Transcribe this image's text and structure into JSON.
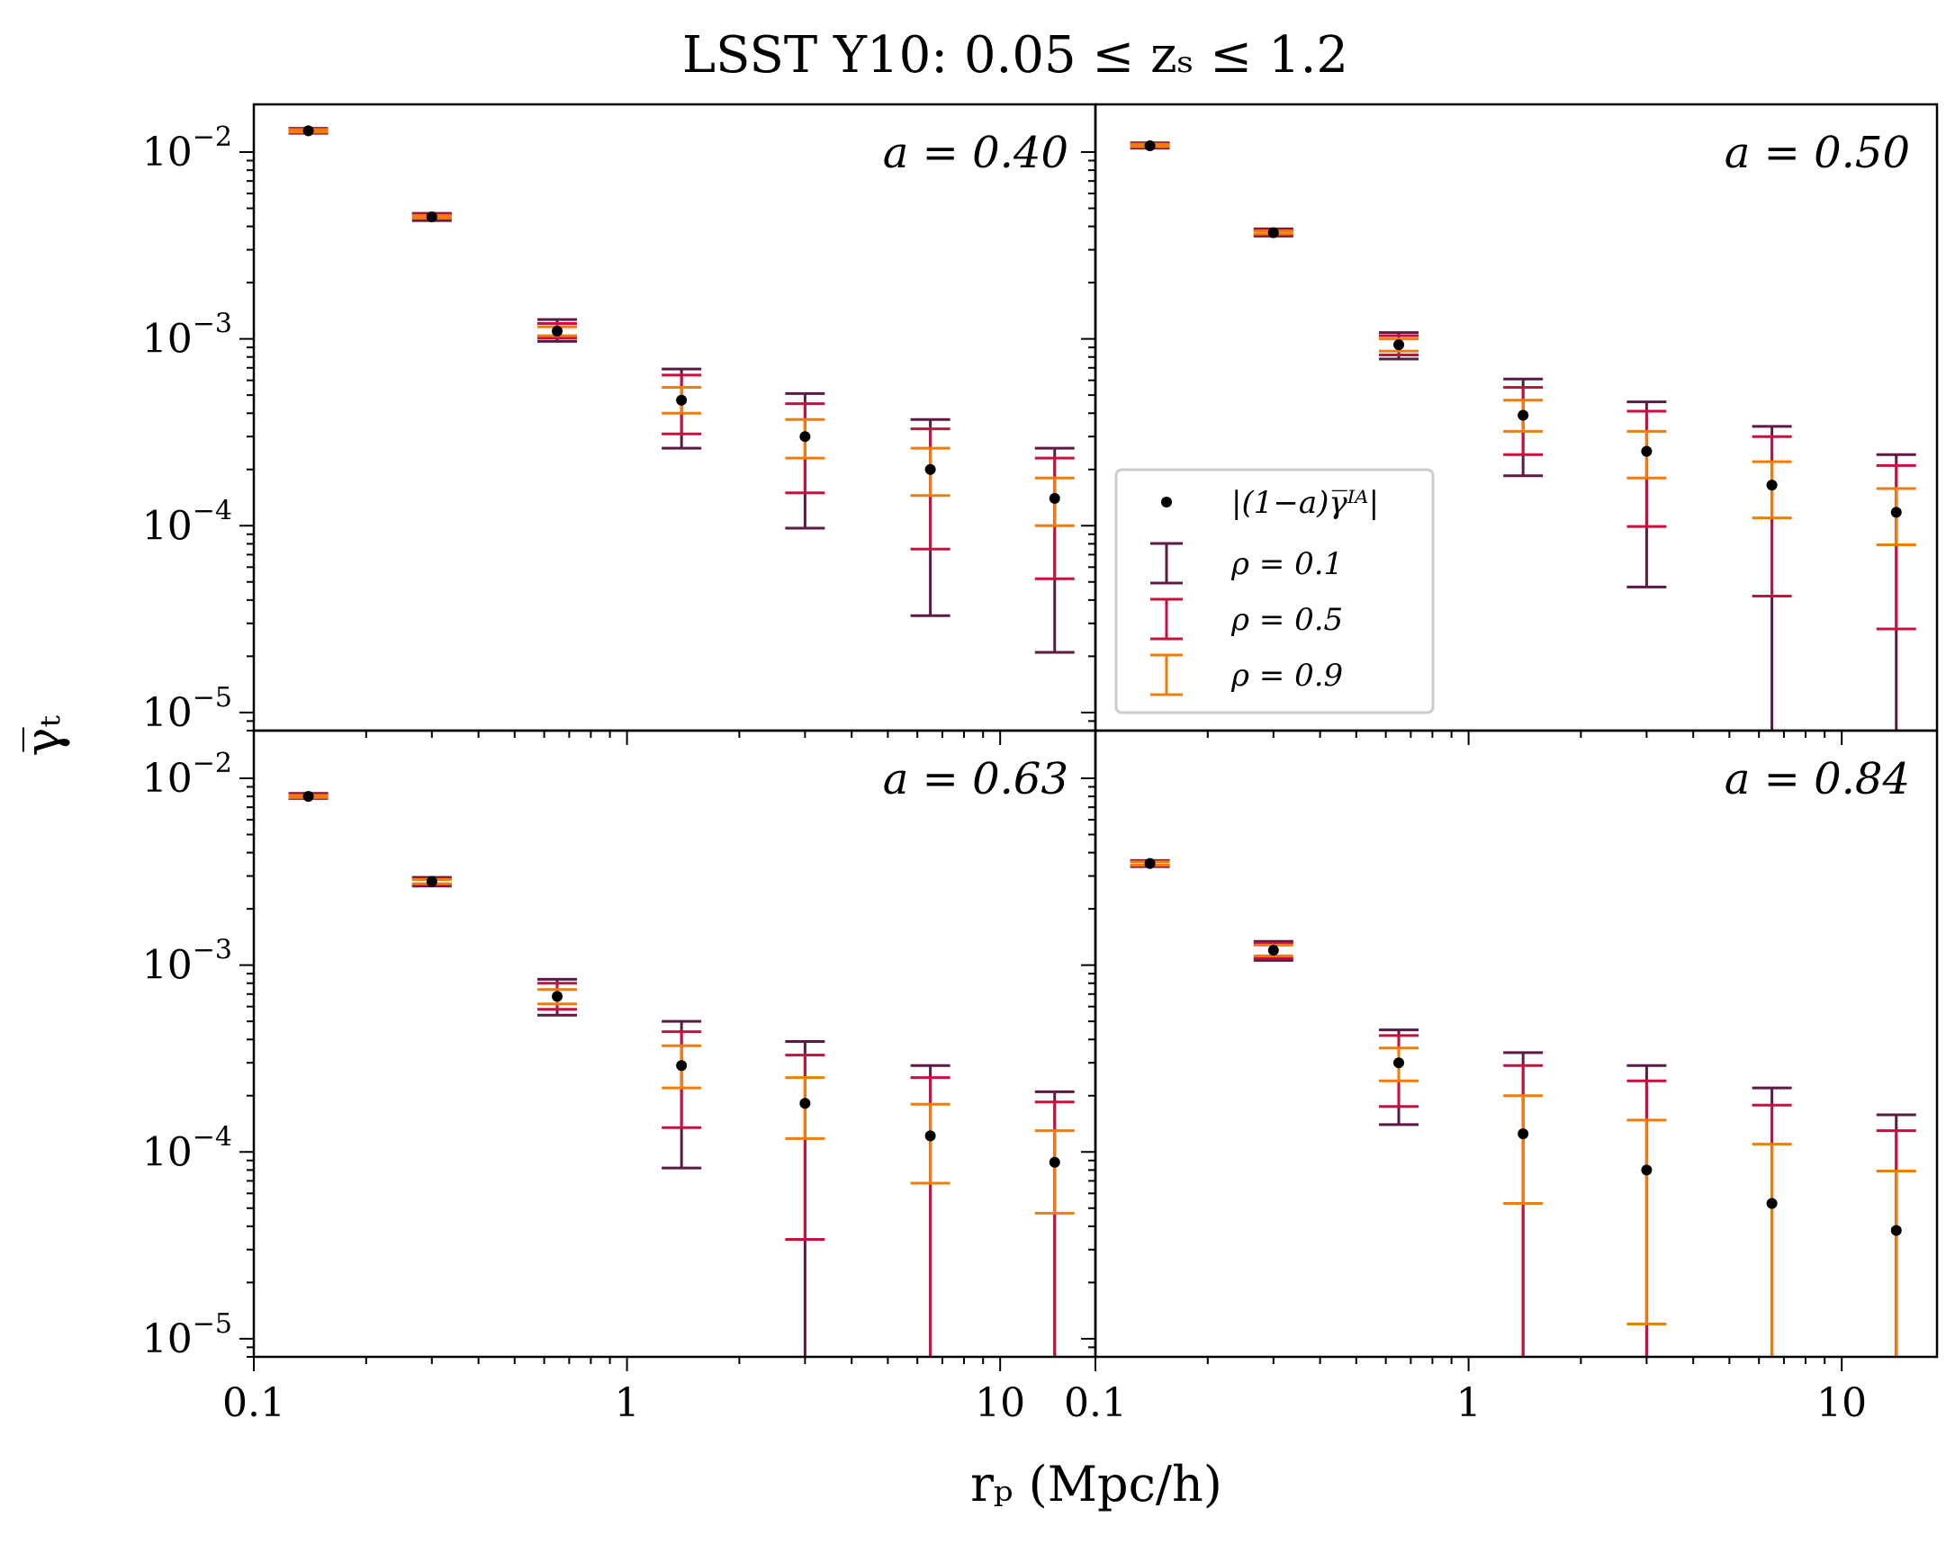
{
  "title": "LSST Y10: 0.05 ≤ zₛ ≤ 1.2",
  "xlabel": "rₚ (Mpc/h)",
  "ylabel": "γ̅ₜ",
  "colors": {
    "rho_0.1": "#5c1a44",
    "rho_0.5": "#c8103e",
    "rho_0.9": "#f07d0a",
    "point": "#000000"
  },
  "legend": {
    "placement": "center-left of panel a=0.50",
    "entries": [
      "|(1−a)γ̅ᴵᴬ|",
      "ρ = 0.1",
      "ρ = 0.5",
      "ρ = 0.9"
    ]
  },
  "chart_data": {
    "type": "scatter",
    "xscale": "log",
    "yscale": "log",
    "xlim": [
      0.1,
      18
    ],
    "ylim": [
      8e-06,
      0.018
    ],
    "x_tick_labels": [
      "0.1",
      "1",
      "10"
    ],
    "y_tick_labels": [
      {
        "base": "10",
        "exp": "−2"
      },
      {
        "base": "10",
        "exp": "−3"
      },
      {
        "base": "10",
        "exp": "−4"
      },
      {
        "base": "10",
        "exp": "−5"
      }
    ],
    "x": [
      0.14,
      0.3,
      0.65,
      1.4,
      3.0,
      6.5,
      14.0
    ],
    "panels": [
      {
        "label": "a = 0.40",
        "y": [
          0.013,
          0.0045,
          0.0011,
          0.00047,
          0.0003,
          0.0002,
          0.00014
        ],
        "errors": {
          "rho_0.1": [
            [
              0.0126,
              0.0134
            ],
            [
              0.0043,
              0.0047
            ],
            [
              0.00097,
              0.00127
            ],
            [
              0.00026,
              0.00069
            ],
            [
              9.7e-05,
              0.00051
            ],
            [
              3.3e-05,
              0.00037
            ],
            [
              2.1e-05,
              0.00026
            ]
          ],
          "rho_0.5": [
            [
              0.0127,
              0.0133
            ],
            [
              0.0044,
              0.00465
            ],
            [
              0.00101,
              0.00121
            ],
            [
              0.00031,
              0.00064
            ],
            [
              0.00015,
              0.00045
            ],
            [
              7.5e-05,
              0.00033
            ],
            [
              5.2e-05,
              0.00023
            ]
          ],
          "rho_0.9": [
            [
              0.0128,
              0.0132
            ],
            [
              0.00443,
              0.00457
            ],
            [
              0.00104,
              0.00116
            ],
            [
              0.0004,
              0.00055
            ],
            [
              0.00023,
              0.00037
            ],
            [
              0.000145,
              0.00026
            ],
            [
              0.0001,
              0.00018
            ]
          ]
        }
      },
      {
        "label": "a = 0.50",
        "y": [
          0.0108,
          0.0037,
          0.00093,
          0.00039,
          0.00025,
          0.000165,
          0.000118
        ],
        "errors": {
          "rho_0.1": [
            [
              0.0105,
              0.0112
            ],
            [
              0.00355,
              0.00388
            ],
            [
              0.00078,
              0.00108
            ],
            [
              0.000185,
              0.00061
            ],
            [
              4.7e-05,
              0.00046
            ],
            [
              8e-07,
              0.00034
            ],
            [
              8e-07,
              0.00024
            ]
          ],
          "rho_0.5": [
            [
              0.0106,
              0.0111
            ],
            [
              0.0036,
              0.00383
            ],
            [
              0.00082,
              0.00104
            ],
            [
              0.00024,
              0.00055
            ],
            [
              9.9e-05,
              0.00041
            ],
            [
              4.2e-05,
              0.0003
            ],
            [
              2.8e-05,
              0.00021
            ]
          ],
          "rho_0.9": [
            [
              0.0107,
              0.011
            ],
            [
              0.00365,
              0.00378
            ],
            [
              0.00086,
              0.001
            ],
            [
              0.00032,
              0.00047
            ],
            [
              0.00018,
              0.00032
            ],
            [
              0.00011,
              0.00022
            ],
            [
              7.9e-05,
              0.000158
            ]
          ]
        }
      },
      {
        "label": "a = 0.63",
        "y": [
          0.008,
          0.0028,
          0.00068,
          0.00029,
          0.000182,
          0.000122,
          8.8e-05
        ],
        "errors": {
          "rho_0.1": [
            [
              0.0078,
              0.0083
            ],
            [
              0.00265,
              0.00295
            ],
            [
              0.00054,
              0.00084
            ],
            [
              8.2e-05,
              0.0005
            ],
            [
              8e-07,
              0.00039
            ],
            [
              8e-07,
              0.00029
            ],
            [
              8e-07,
              0.00021
            ]
          ],
          "rho_0.5": [
            [
              0.00785,
              0.0082
            ],
            [
              0.0027,
              0.0029
            ],
            [
              0.00058,
              0.0008
            ],
            [
              0.000135,
              0.00044
            ],
            [
              3.4e-05,
              0.00033
            ],
            [
              8e-07,
              0.00025
            ],
            [
              8e-07,
              0.000185
            ]
          ],
          "rho_0.9": [
            [
              0.0079,
              0.0081
            ],
            [
              0.00273,
              0.00287
            ],
            [
              0.00062,
              0.00074
            ],
            [
              0.00022,
              0.00037
            ],
            [
              0.000118,
              0.00025
            ],
            [
              6.8e-05,
              0.00018
            ],
            [
              4.7e-05,
              0.00013
            ]
          ]
        }
      },
      {
        "label": "a = 0.84",
        "y": [
          0.0035,
          0.0012,
          0.0003,
          0.000125,
          8e-05,
          5.3e-05,
          3.8e-05
        ],
        "errors": {
          "rho_0.1": [
            [
              0.00337,
              0.00363
            ],
            [
              0.00106,
              0.00134
            ],
            [
              0.00014,
              0.00045
            ],
            [
              8e-07,
              0.00034
            ],
            [
              8e-07,
              0.00029
            ],
            [
              8e-07,
              0.00022
            ],
            [
              8e-07,
              0.000158
            ]
          ],
          "rho_0.5": [
            [
              0.0034,
              0.0036
            ],
            [
              0.00109,
              0.00131
            ],
            [
              0.000175,
              0.00042
            ],
            [
              8e-07,
              0.00029
            ],
            [
              8e-07,
              0.00024
            ],
            [
              8e-07,
              0.000178
            ],
            [
              8e-07,
              0.00013
            ]
          ],
          "rho_0.9": [
            [
              0.00343,
              0.00357
            ],
            [
              0.00112,
              0.00128
            ],
            [
              0.00024,
              0.00036
            ],
            [
              5.3e-05,
              0.0002
            ],
            [
              1.2e-05,
              0.000148
            ],
            [
              8e-07,
              0.00011
            ],
            [
              8e-07,
              7.9e-05
            ]
          ]
        }
      }
    ]
  }
}
